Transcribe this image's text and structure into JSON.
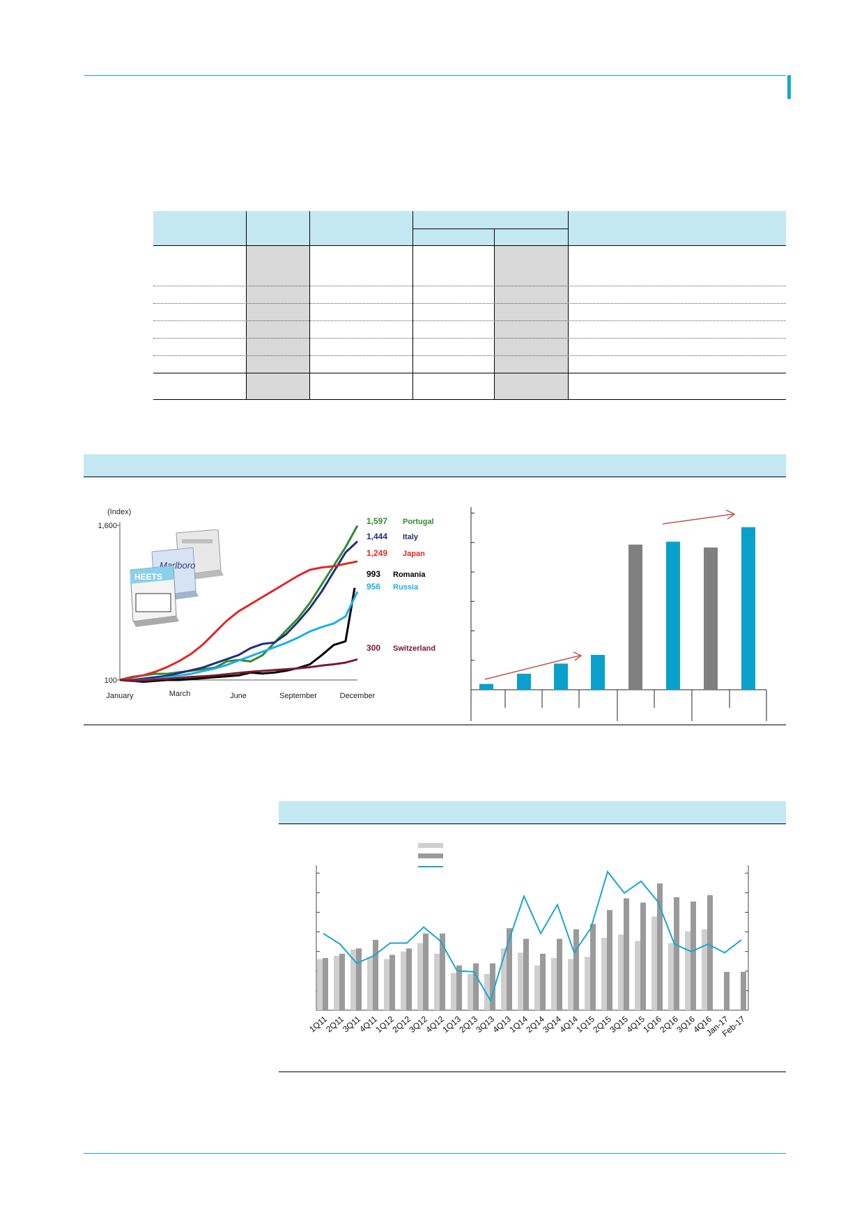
{
  "colors": {
    "accent": "#1aa6cf",
    "band": "#c4e8f1",
    "table_gray": "#d9d9d9",
    "bar_gray": "#808080",
    "bar_light": "#cfcfcf",
    "bar_mid": "#9a9a9a",
    "trend_arrow": "#c0504d"
  },
  "icons": [
    "product-packs-image"
  ],
  "chart_data": [
    {
      "type": "line",
      "ylabel": "(Index)",
      "y_ticks": [
        "1,600",
        "100"
      ],
      "x_labels": [
        "January",
        "March",
        "June",
        "September",
        "December"
      ],
      "series": [
        {
          "name": "Portugal",
          "end_value": "1,597",
          "color": "#2e8b2e",
          "end": 1597
        },
        {
          "name": "Italy",
          "end_value": "1,444",
          "color": "#1f2f7a",
          "end": 1444
        },
        {
          "name": "Japan",
          "end_value": "1,249",
          "color": "#e02828",
          "end": 1249
        },
        {
          "name": "Romania",
          "end_value": "993",
          "color": "#000000",
          "end": 993
        },
        {
          "name": "Russia",
          "end_value": "956",
          "color": "#1eaee6",
          "end": 956
        },
        {
          "name": "Switzerland",
          "end_value": "300",
          "color": "#7a1a2a",
          "end": 300
        }
      ]
    },
    {
      "type": "bar",
      "values": [
        4,
        11,
        18,
        24,
        100,
        102,
        98,
        112
      ],
      "colors": [
        "#0aa0cc",
        "#0aa0cc",
        "#0aa0cc",
        "#0aa0cc",
        "#808080",
        "#0aa0cc",
        "#808080",
        "#0aa0cc"
      ]
    },
    {
      "type": "bar",
      "categories": [
        "1Q11",
        "2Q11",
        "3Q11",
        "4Q11",
        "1Q12",
        "2Q12",
        "3Q12",
        "4Q12",
        "1Q13",
        "2Q13",
        "3Q13",
        "4Q13",
        "1Q14",
        "2Q14",
        "3Q14",
        "4Q14",
        "1Q15",
        "2Q15",
        "3Q15",
        "4Q15",
        "1Q16",
        "2Q16",
        "3Q16",
        "4Q16",
        "Jan-17",
        "Feb-17"
      ],
      "series": [
        {
          "values": [
            2.4,
            2.55,
            2.85,
            2.5,
            2.4,
            2.75,
            3.15,
            2.65,
            1.75,
            1.7,
            1.7,
            2.9,
            2.7,
            2.1,
            2.45,
            2.4,
            2.5,
            3.4,
            3.55,
            3.25,
            4.4,
            3.15,
            3.7,
            3.8,
            null,
            null
          ]
        },
        {
          "values": [
            2.45,
            2.65,
            2.9,
            3.3,
            2.6,
            2.9,
            3.6,
            3.6,
            2.1,
            2.2,
            2.2,
            3.85,
            3.35,
            2.65,
            3.35,
            3.8,
            4.05,
            4.7,
            5.25,
            5.05,
            5.95,
            5.3,
            5.1,
            5.4,
            1.8,
            1.8
          ]
        },
        {
          "values": [
            3.6,
            3.1,
            2.2,
            2.55,
            3.15,
            3.15,
            3.9,
            3.25,
            1.85,
            1.8,
            0.45,
            3.05,
            5.35,
            3.6,
            4.95,
            2.7,
            3.85,
            6.5,
            5.5,
            6.05,
            5.1,
            3.1,
            2.75,
            3.1,
            2.7,
            3.3
          ]
        }
      ]
    }
  ]
}
